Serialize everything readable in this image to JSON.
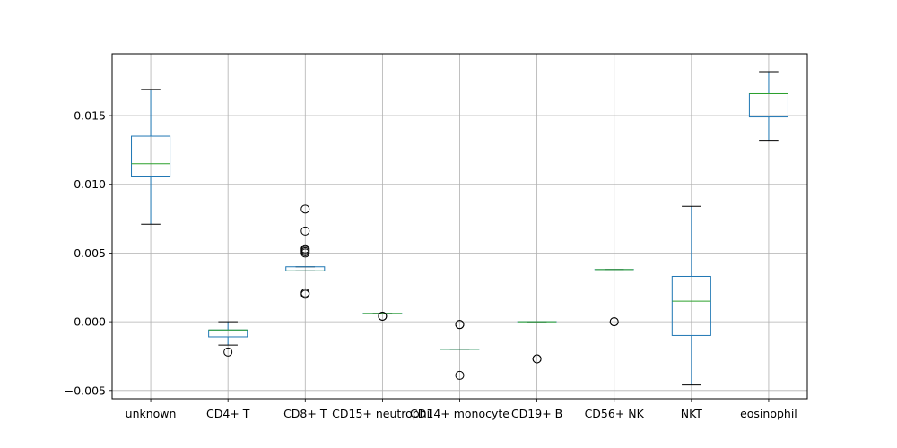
{
  "chart_data": {
    "type": "boxplot",
    "title": "",
    "xlabel": "",
    "ylabel": "",
    "ylim": [
      -0.0056,
      0.0195
    ],
    "yticks": [
      {
        "value": -0.005,
        "label": "−0.005"
      },
      {
        "value": 0.0,
        "label": "0.000"
      },
      {
        "value": 0.005,
        "label": "0.005"
      },
      {
        "value": 0.01,
        "label": "0.010"
      },
      {
        "value": 0.015,
        "label": "0.015"
      }
    ],
    "grid": true,
    "categories": [
      "unknown",
      "CD4+ T",
      "CD8+ T",
      "CD15+ neutrophil",
      "CD14+ monocyte",
      "CD19+ B",
      "CD56+ NK",
      "NKT",
      "eosinophil"
    ],
    "boxes": [
      {
        "whislo": 0.0071,
        "q1": 0.0106,
        "med": 0.0115,
        "q3": 0.0135,
        "whishi": 0.0169,
        "fliers": []
      },
      {
        "whislo": -0.0017,
        "q1": -0.0011,
        "med": -0.0006,
        "q3": -0.0006,
        "whishi": 0.0,
        "fliers": [
          -0.0022
        ]
      },
      {
        "whislo": 0.0037,
        "q1": 0.0037,
        "med": 0.0037,
        "q3": 0.004,
        "whishi": 0.004,
        "fliers": [
          0.0082,
          0.0066,
          0.0053,
          0.0052,
          0.0051,
          0.005,
          0.0021,
          0.002
        ]
      },
      {
        "whislo": 0.0006,
        "q1": 0.0006,
        "med": 0.0006,
        "q3": 0.0006,
        "whishi": 0.0006,
        "fliers": [
          0.0004,
          0.0004
        ]
      },
      {
        "whislo": -0.002,
        "q1": -0.002,
        "med": -0.002,
        "q3": -0.002,
        "whishi": -0.002,
        "fliers": [
          -0.0002,
          -0.0002,
          -0.0039
        ]
      },
      {
        "whislo": 0.0,
        "q1": 0.0,
        "med": 0.0,
        "q3": 0.0,
        "whishi": 0.0,
        "fliers": [
          -0.0027,
          -0.0027
        ]
      },
      {
        "whislo": 0.0038,
        "q1": 0.0038,
        "med": 0.0038,
        "q3": 0.0038,
        "whishi": 0.0038,
        "fliers": [
          0.0,
          0.0
        ]
      },
      {
        "whislo": -0.0046,
        "q1": -0.001,
        "med": 0.0015,
        "q3": 0.0033,
        "whishi": 0.0084,
        "fliers": []
      },
      {
        "whislo": 0.0132,
        "q1": 0.0149,
        "med": 0.0166,
        "q3": 0.0166,
        "whishi": 0.0182,
        "fliers": []
      }
    ],
    "colors": {
      "box": "#1f77b4",
      "median": "#2ca02c",
      "whisker": "#1f77b4",
      "cap": "#000000",
      "flier": "#000000",
      "grid": "#b0b0b0",
      "axes": "#000000"
    }
  }
}
